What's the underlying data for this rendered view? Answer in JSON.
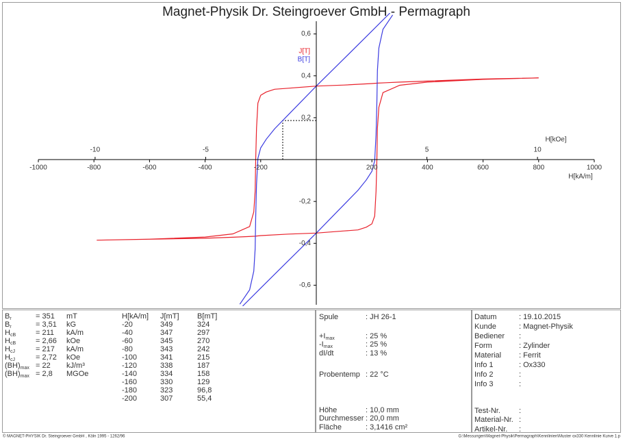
{
  "chart_data": {
    "type": "line",
    "title": "Magnet-Physik Dr. Steingroever GmbH - Permagraph",
    "xlabel": "H[kA/m]",
    "x2label": "H[kOe]",
    "xlim": [
      -1000,
      1000
    ],
    "xticks": [
      -1000,
      -800,
      -600,
      -400,
      -200,
      200,
      400,
      600,
      800,
      1000
    ],
    "x2lim": [
      -12.566,
      12.566
    ],
    "x2ticks": [
      -10,
      -5,
      5,
      10
    ],
    "ylim": [
      -0.7,
      0.7
    ],
    "yticks": [
      {
        "value": 0.6,
        "label": "0,6"
      },
      {
        "value": 0.4,
        "label": "0,4"
      },
      {
        "value": 0.2,
        "label": "0,2"
      },
      {
        "value": -0.2,
        "label": "-0,2"
      },
      {
        "value": -0.4,
        "label": "-0,4"
      },
      {
        "value": -0.6,
        "label": "-0,6"
      }
    ],
    "series": [
      {
        "name": "J[T]",
        "color": "#e8202a",
        "x": [
          800,
          600,
          400,
          300,
          250,
          220,
          200,
          100,
          0,
          -100,
          -150,
          -180,
          -200,
          -210,
          -215,
          -218,
          -220,
          -225,
          -240,
          -300,
          -400,
          -600,
          -790,
          -400,
          -300,
          -250,
          -220,
          -200,
          -100,
          0,
          100,
          150,
          180,
          200,
          210,
          215,
          218,
          220,
          225,
          240,
          300,
          400,
          600,
          800
        ],
        "values": [
          0.39,
          0.385,
          0.375,
          0.37,
          0.367,
          0.365,
          0.363,
          0.356,
          0.351,
          0.341,
          0.336,
          0.323,
          0.307,
          0.27,
          0.15,
          0,
          -0.15,
          -0.25,
          -0.32,
          -0.355,
          -0.37,
          -0.38,
          -0.385,
          -0.376,
          -0.371,
          -0.368,
          -0.366,
          -0.363,
          -0.356,
          -0.351,
          -0.341,
          -0.336,
          -0.323,
          -0.307,
          -0.27,
          -0.15,
          0,
          0.15,
          0.25,
          0.32,
          0.355,
          0.37,
          0.383,
          0.39
        ]
      },
      {
        "name": "B[T]",
        "color": "#3a3ae0",
        "x": [
          265,
          200,
          100,
          0,
          -100,
          -150,
          -180,
          -200,
          -210,
          -215,
          -218,
          -220,
          -225,
          -240,
          -275,
          null,
          -265,
          -200,
          -100,
          0,
          100,
          150,
          180,
          200,
          210,
          215,
          218,
          220,
          225,
          240,
          275
        ],
        "values": [
          0.7,
          0.614,
          0.482,
          0.351,
          0.215,
          0.147,
          0.097,
          0.056,
          0.006,
          -0.12,
          -0.274,
          -0.426,
          -0.533,
          -0.622,
          -0.691,
          null,
          -0.7,
          -0.614,
          -0.482,
          -0.351,
          -0.215,
          -0.147,
          -0.097,
          -0.056,
          -0.006,
          0.12,
          0.274,
          0.426,
          0.533,
          0.622,
          0.691
        ]
      }
    ]
  },
  "parameters": [
    {
      "symbol": "B",
      "sub": "r",
      "value": "= 351",
      "unit": "mT"
    },
    {
      "symbol": "B",
      "sub": "r",
      "value": "= 3,51",
      "unit": "kG"
    },
    {
      "symbol": "H",
      "sub": "cB",
      "value": "= 211",
      "unit": "kA/m"
    },
    {
      "symbol": "H",
      "sub": "cB",
      "value": "= 2,66",
      "unit": "kOe"
    },
    {
      "symbol": "H",
      "sub": "cJ",
      "value": "= 217",
      "unit": "kA/m"
    },
    {
      "symbol": "H",
      "sub": "cJ",
      "value": "= 2,72",
      "unit": "kOe"
    },
    {
      "symbol": "(BH)",
      "sub": "max",
      "value": "= 22",
      "unit": "kJ/m³"
    },
    {
      "symbol": "(BH)",
      "sub": "max",
      "value": "= 2,8",
      "unit": "MGOe"
    }
  ],
  "table": {
    "header": [
      "H[kA/m]",
      "J[mT]",
      "B[mT]"
    ],
    "rows": [
      [
        -20,
        349,
        324
      ],
      [
        -40,
        347,
        297
      ],
      [
        -60,
        345,
        270
      ],
      [
        -80,
        343,
        242
      ],
      [
        -100,
        341,
        215
      ],
      [
        -120,
        338,
        187
      ],
      [
        -140,
        334,
        158
      ],
      [
        -160,
        330,
        129
      ],
      [
        -180,
        323,
        "96,8"
      ],
      [
        -200,
        307,
        "55,4"
      ]
    ]
  },
  "settings": [
    {
      "label": "Spule",
      "sub": "",
      "value": ": JH 26-1"
    },
    {
      "label": "+I",
      "sub": "max",
      "value": ": 25 %"
    },
    {
      "label": "-I",
      "sub": "max",
      "value": ": 25 %"
    },
    {
      "label": "dI/dt",
      "sub": "",
      "value": ": 13 %"
    },
    {
      "label": "Probentemp",
      "sub": "",
      "value": ": 22 °C"
    },
    {
      "label": "Höhe",
      "sub": "",
      "value": ": 10,0 mm"
    },
    {
      "label": "Durchmesser",
      "sub": "",
      "value": ": 20,0 mm"
    },
    {
      "label": "Fläche",
      "sub": "",
      "value": ": 3,1416 cm²"
    }
  ],
  "info": [
    {
      "label": "Datum",
      "value": ": 19.10.2015"
    },
    {
      "label": "Kunde",
      "value": ": Magnet-Physik"
    },
    {
      "label": "Bediener",
      "value": ":"
    },
    {
      "label": "Form",
      "value": ": Zylinder"
    },
    {
      "label": "Material",
      "value": ": Ferrit"
    },
    {
      "label": "Info 1",
      "value": ": Ox330"
    },
    {
      "label": "Info 2",
      "value": ":"
    },
    {
      "label": "Info 3",
      "value": ":"
    },
    {
      "label": "Test-Nr.",
      "value": ":"
    },
    {
      "label": "Material-Nr.",
      "value": ":"
    },
    {
      "label": "Artikel-Nr.",
      "value": ":"
    }
  ],
  "footer": {
    "left": "© MAGNET-PHYSIK Dr. Steingroever GmbH , Köln 1995 - 1262/96",
    "right": "G:\\Messungen\\Magnet-Physik\\Permagraph\\Kennlinien\\Muster ox330 Kennlinie Kurve 1.p"
  }
}
